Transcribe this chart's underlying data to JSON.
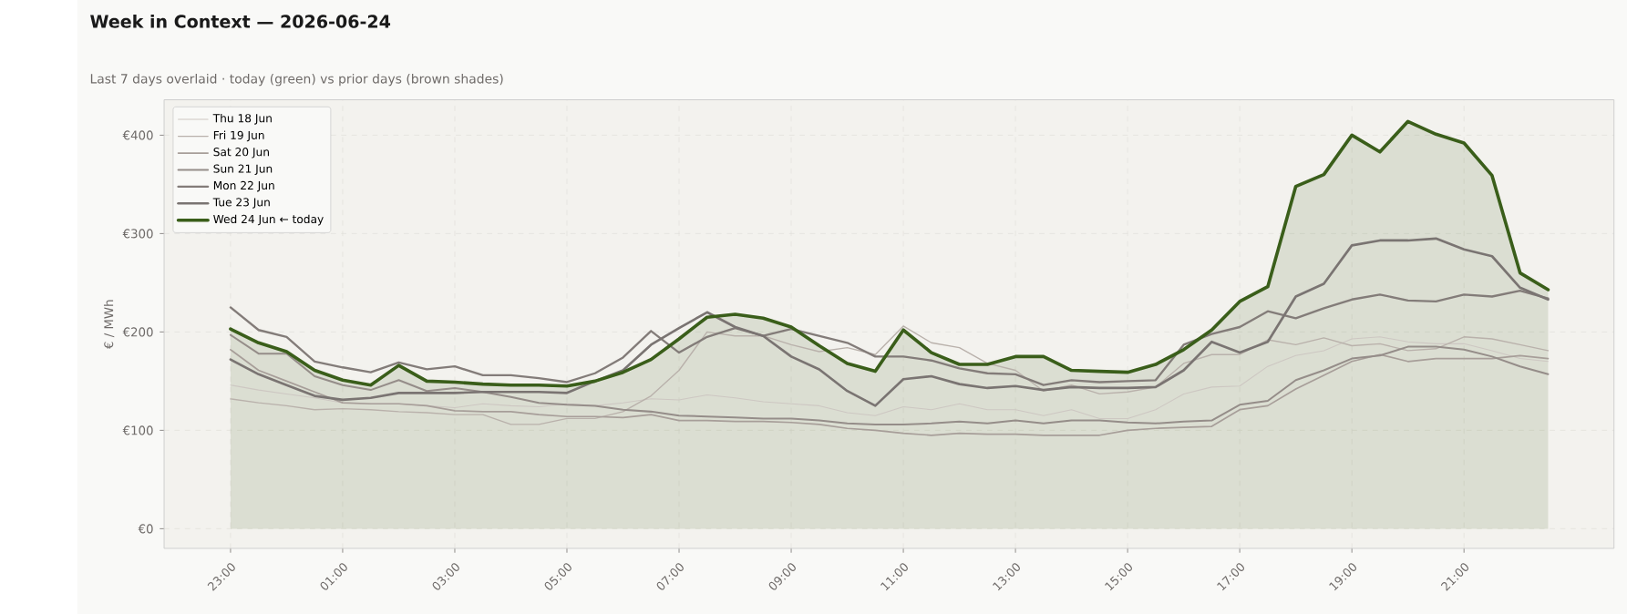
{
  "chart_data": {
    "type": "line",
    "title": "Week in Context — 2026-06-24",
    "subtitle": "Last 7 days overlaid  ·  today (green) vs prior days (brown shades)",
    "ylabel": "€ / MWh",
    "categories": [
      "23:00",
      null,
      null,
      null,
      "01:00",
      null,
      null,
      null,
      "03:00",
      null,
      null,
      null,
      "05:00",
      null,
      null,
      null,
      "07:00",
      null,
      null,
      null,
      "09:00",
      null,
      null,
      null,
      "11:00",
      null,
      null,
      null,
      "13:00",
      null,
      null,
      null,
      "15:00",
      null,
      null,
      null,
      "17:00",
      null,
      null,
      null,
      "19:00",
      null,
      null,
      null,
      "21:00",
      null,
      null,
      null
    ],
    "ylim": [
      -20,
      436
    ],
    "yticks": [
      {
        "value": 0,
        "label": "€0"
      },
      {
        "value": 100,
        "label": "€100"
      },
      {
        "value": 200,
        "label": "€200"
      },
      {
        "value": 300,
        "label": "€300"
      },
      {
        "value": 400,
        "label": "€400"
      }
    ],
    "grid": true,
    "legend": "top left",
    "series": [
      {
        "name": "Thu 18 Jun",
        "color": "#cdc7c2",
        "values": [
          146,
          141,
          137,
          133,
          128,
          127,
          127,
          125,
          123,
          127,
          125,
          124,
          127,
          125,
          128,
          132,
          131,
          136,
          133,
          129,
          127,
          125,
          118,
          115,
          124,
          121,
          127,
          121,
          121,
          115,
          121,
          112,
          112,
          121,
          137,
          144,
          145,
          165,
          176,
          181,
          193,
          195,
          190,
          188,
          188,
          181,
          173,
          170
        ]
      },
      {
        "name": "Fri 19 Jun",
        "color": "#b9b1ab",
        "values": [
          132,
          128,
          125,
          121,
          122,
          121,
          119,
          118,
          116,
          116,
          106,
          106,
          112,
          112,
          119,
          135,
          161,
          200,
          196,
          196,
          187,
          180,
          184,
          177,
          206,
          189,
          184,
          168,
          161,
          140,
          146,
          137,
          139,
          144,
          168,
          177,
          177,
          192,
          187,
          194,
          186,
          188,
          181,
          183,
          195,
          193,
          187,
          181
        ]
      },
      {
        "name": "Sat 20 Jun",
        "color": "#a79e99",
        "values": [
          182,
          161,
          150,
          139,
          128,
          127,
          127,
          125,
          120,
          119,
          119,
          116,
          114,
          114,
          113,
          116,
          110,
          110,
          109,
          109,
          108,
          106,
          102,
          100,
          97,
          95,
          97,
          96,
          96,
          95,
          95,
          95,
          100,
          102,
          103,
          104,
          121,
          125,
          142,
          156,
          170,
          177,
          170,
          173,
          173,
          173,
          176,
          173
        ]
      },
      {
        "name": "Sun 21 Jun",
        "color": "#958d89",
        "values": [
          197,
          178,
          178,
          155,
          146,
          141,
          151,
          140,
          143,
          139,
          134,
          128,
          126,
          125,
          121,
          119,
          115,
          114,
          113,
          112,
          112,
          110,
          107,
          106,
          106,
          107,
          109,
          107,
          110,
          107,
          110,
          110,
          108,
          107,
          109,
          110,
          126,
          130,
          151,
          161,
          173,
          176,
          185,
          185,
          182,
          175,
          165,
          157
        ]
      },
      {
        "name": "Mon 22 Jun",
        "color": "#837c79",
        "values": [
          225,
          202,
          195,
          170,
          164,
          159,
          169,
          162,
          165,
          156,
          156,
          153,
          149,
          158,
          174,
          201,
          179,
          195,
          204,
          196,
          203,
          196,
          189,
          175,
          175,
          171,
          163,
          158,
          157,
          146,
          151,
          149,
          150,
          151,
          187,
          198,
          205,
          221,
          214,
          224,
          233,
          238,
          232,
          231,
          238,
          236,
          242,
          234
        ]
      },
      {
        "name": "Tue 23 Jun",
        "color": "#7a7472",
        "values": [
          172,
          157,
          146,
          135,
          131,
          133,
          138,
          138,
          138,
          139,
          139,
          139,
          138,
          150,
          161,
          187,
          204,
          220,
          205,
          196,
          175,
          162,
          140,
          125,
          152,
          155,
          147,
          143,
          145,
          141,
          144,
          143,
          143,
          144,
          161,
          190,
          179,
          190,
          236,
          249,
          288,
          293,
          293,
          295,
          284,
          277,
          245,
          233
        ]
      },
      {
        "name": "Wed 24 Jun  ← today",
        "type": "area",
        "color": "#3a5e1a",
        "values": [
          203,
          189,
          180,
          161,
          151,
          146,
          166,
          150,
          149,
          147,
          146,
          146,
          145,
          150,
          159,
          172,
          193,
          215,
          218,
          214,
          205,
          186,
          168,
          160,
          202,
          179,
          167,
          167,
          175,
          175,
          161,
          160,
          159,
          167,
          182,
          202,
          231,
          246,
          348,
          360,
          400,
          383,
          414,
          401,
          392,
          359,
          260,
          243
        ]
      }
    ]
  }
}
